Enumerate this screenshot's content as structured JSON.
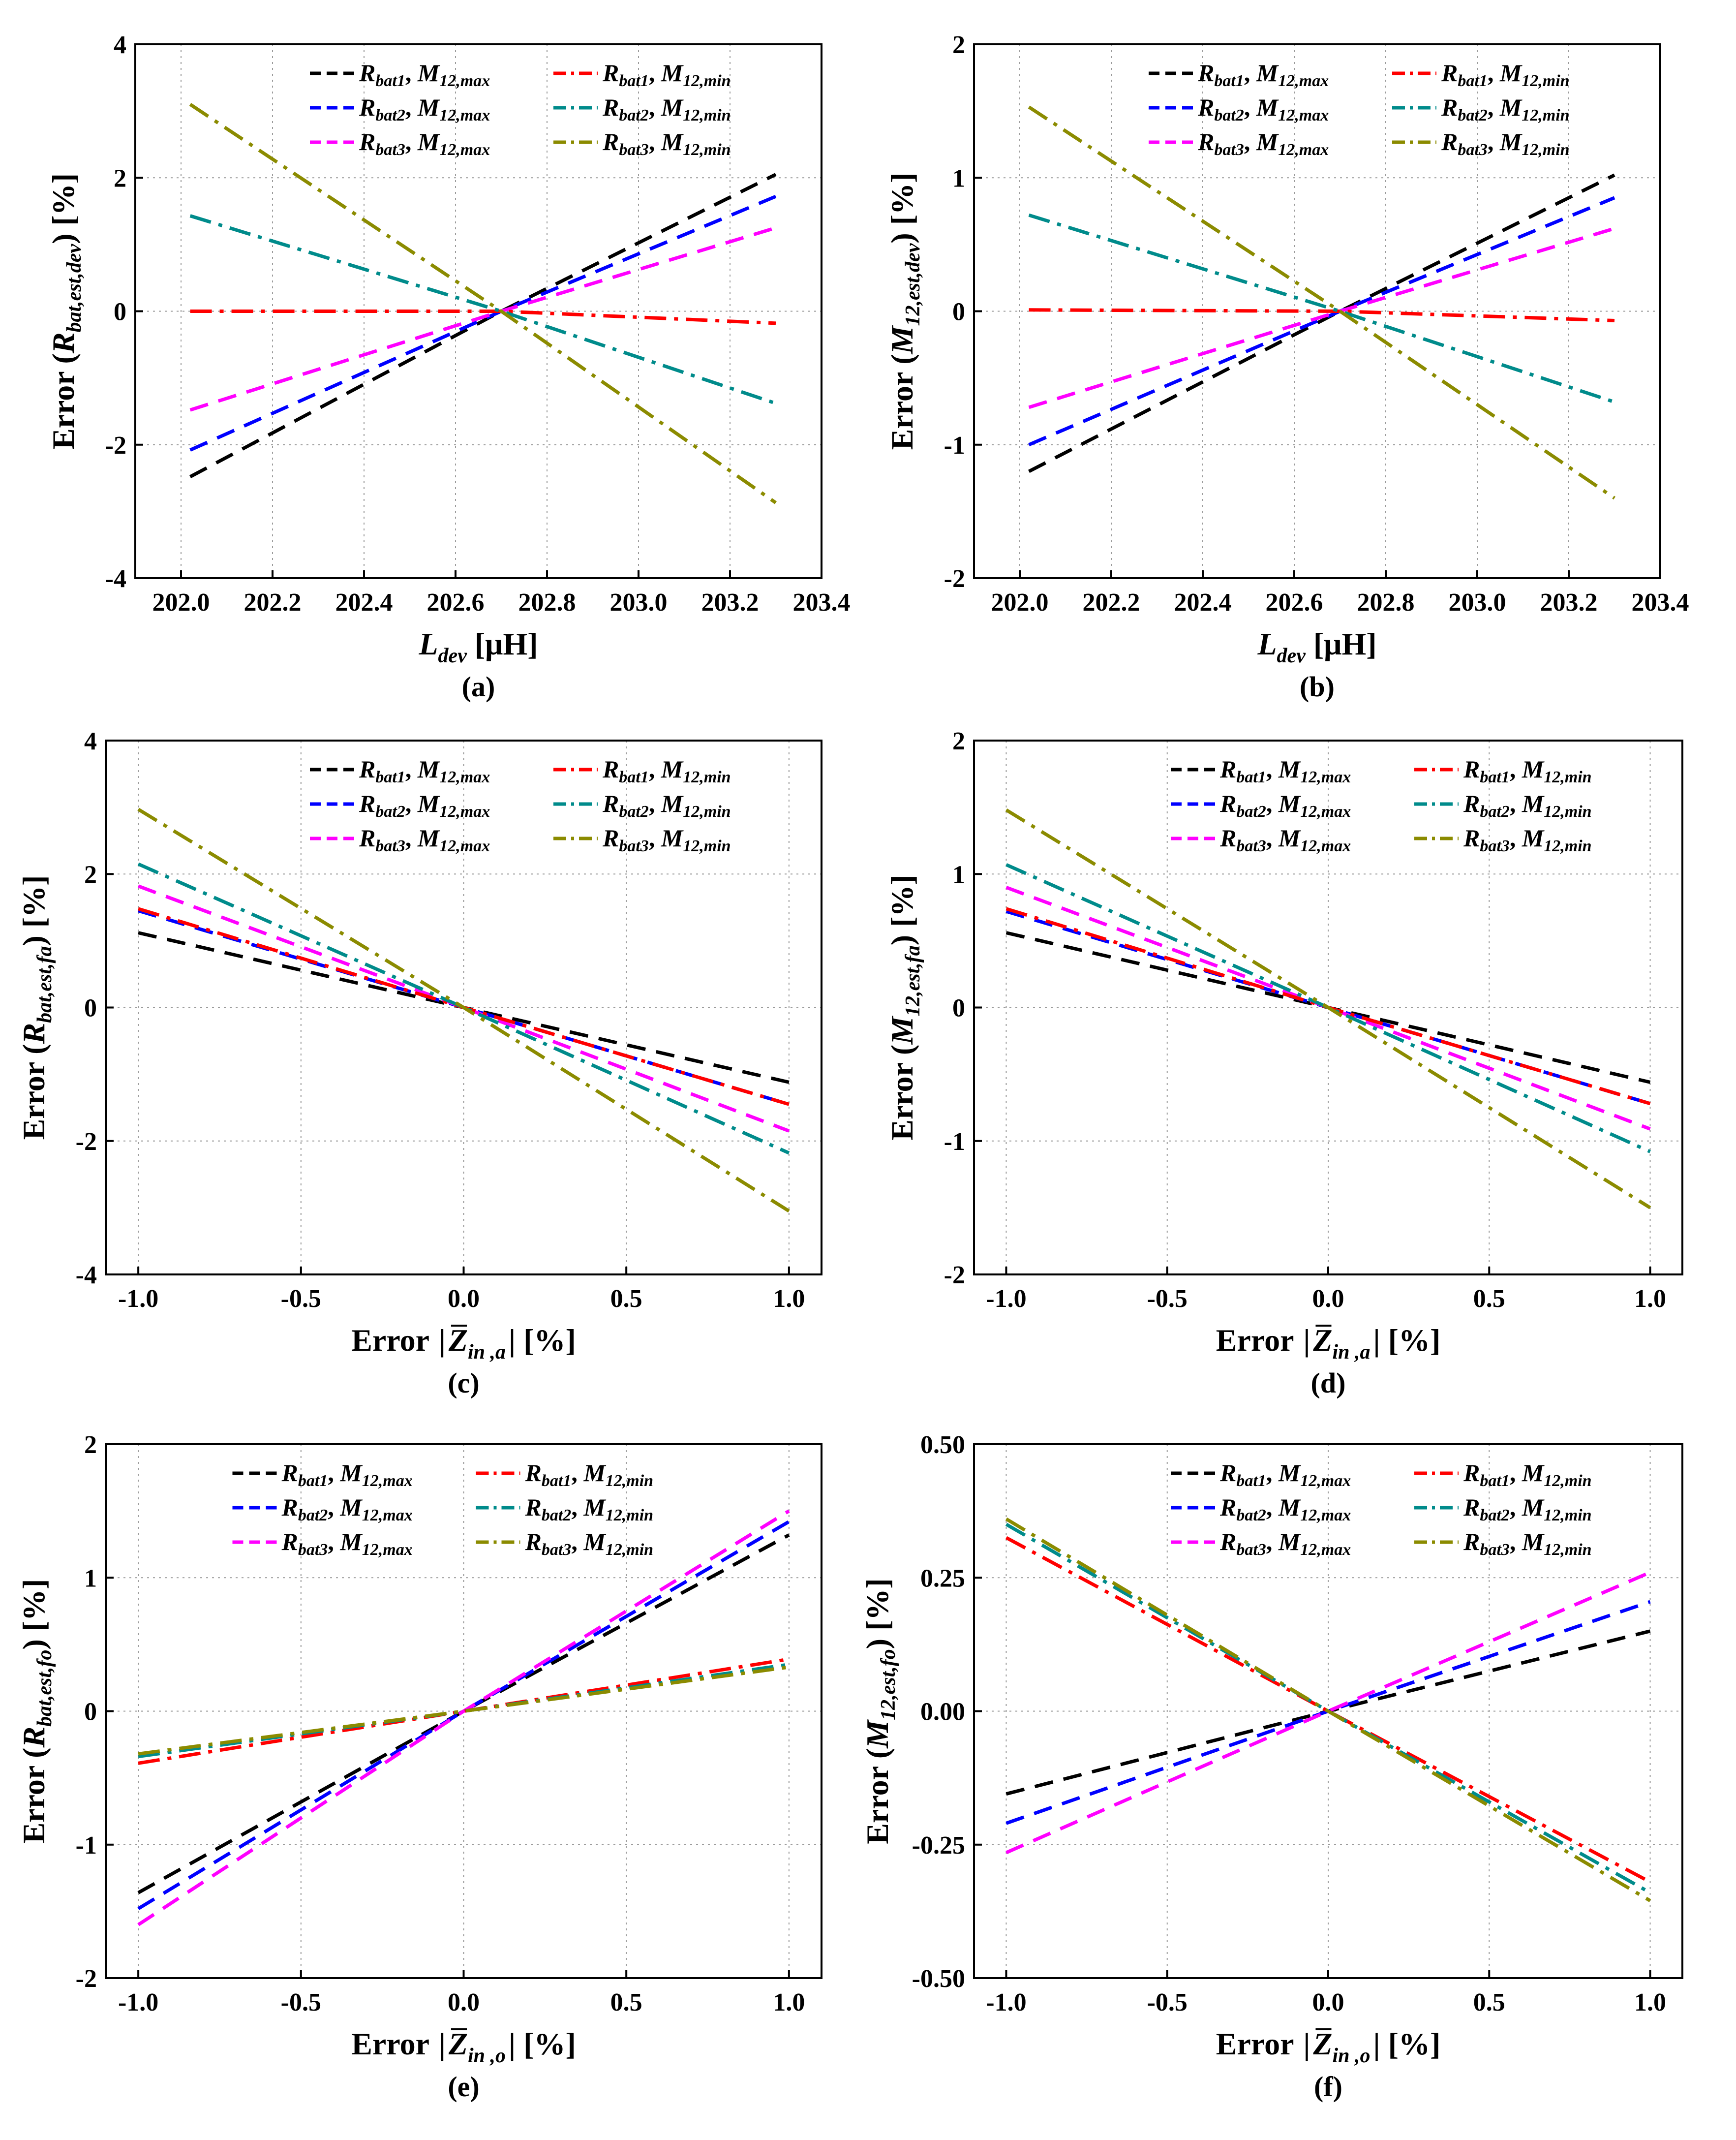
{
  "colors": {
    "R1max": "#000000",
    "R2max": "#0000ff",
    "R3max": "#ff00ff",
    "R1min": "#ff0000",
    "R2min": "#008b8b",
    "R3min": "#8b8b00"
  },
  "legend_keys": [
    "R1max",
    "R1min",
    "R2max",
    "R2min",
    "R3max",
    "R3min"
  ],
  "legend": {
    "R1max": {
      "base": "R",
      "base_sub": "bat1",
      "sep": ", ",
      "m": "M",
      "m_sub": "12,max"
    },
    "R1min": {
      "base": "R",
      "base_sub": "bat1",
      "sep": ", ",
      "m": "M",
      "m_sub": "12,min"
    },
    "R2max": {
      "base": "R",
      "base_sub": "bat2",
      "sep": ", ",
      "m": "M",
      "m_sub": "12,max"
    },
    "R2min": {
      "base": "R",
      "base_sub": "bat2",
      "sep": ", ",
      "m": "M",
      "m_sub": "12,min"
    },
    "R3max": {
      "base": "R",
      "base_sub": "bat3",
      "sep": ", ",
      "m": "M",
      "m_sub": "12,max"
    },
    "R3min": {
      "base": "R",
      "base_sub": "bat3",
      "sep": ", ",
      "m": "M",
      "m_sub": "12,min"
    }
  },
  "chart_data": [
    {
      "id": "a",
      "type": "line",
      "panel_label": "(a)",
      "xlim": [
        201.9,
        203.4
      ],
      "ylim": [
        -4,
        4
      ],
      "xticks": [
        202.0,
        202.2,
        202.4,
        202.6,
        202.8,
        203.0,
        203.2,
        203.4
      ],
      "xtick_labels": [
        "202.0",
        "202.2",
        "202.4",
        "202.6",
        "202.8",
        "203.0",
        "203.2",
        "203.4"
      ],
      "yticks": [
        -4,
        -2,
        0,
        2,
        4
      ],
      "ytick_labels": [
        "-4",
        "-2",
        "0",
        "2",
        "4"
      ],
      "xlabel": {
        "main": "L",
        "sub": "dev",
        "rest": " [μH]"
      },
      "ylabel": {
        "pre": "Error (",
        "main": "R",
        "sub": "bat,est,dev",
        "post": ") [%]"
      },
      "legend_position": "top-right",
      "series": [
        {
          "key": "R1max",
          "x": [
            202.02,
            202.7,
            203.3
          ],
          "y": [
            -2.48,
            0.0,
            2.05
          ]
        },
        {
          "key": "R2max",
          "x": [
            202.02,
            202.7,
            203.3
          ],
          "y": [
            -2.08,
            0.0,
            1.72
          ]
        },
        {
          "key": "R3max",
          "x": [
            202.02,
            202.7,
            203.3
          ],
          "y": [
            -1.48,
            0.0,
            1.25
          ]
        },
        {
          "key": "R1min",
          "x": [
            202.02,
            202.7,
            203.3
          ],
          "y": [
            0.0,
            0.0,
            -0.18
          ]
        },
        {
          "key": "R2min",
          "x": [
            202.02,
            202.7,
            203.3
          ],
          "y": [
            1.43,
            0.0,
            -1.38
          ]
        },
        {
          "key": "R3min",
          "x": [
            202.02,
            202.7,
            203.3
          ],
          "y": [
            3.1,
            0.0,
            -2.87
          ]
        }
      ]
    },
    {
      "id": "b",
      "type": "line",
      "panel_label": "(b)",
      "xlim": [
        201.9,
        203.4
      ],
      "ylim": [
        -2,
        2
      ],
      "xticks": [
        202.0,
        202.2,
        202.4,
        202.6,
        202.8,
        203.0,
        203.2,
        203.4
      ],
      "xtick_labels": [
        "202.0",
        "202.2",
        "202.4",
        "202.6",
        "202.8",
        "203.0",
        "203.2",
        "203.4"
      ],
      "yticks": [
        -2,
        -1,
        0,
        1,
        2
      ],
      "ytick_labels": [
        "-2",
        "-1",
        "0",
        "1",
        "2"
      ],
      "xlabel": {
        "main": "L",
        "sub": "dev",
        "rest": " [μH]"
      },
      "ylabel": {
        "pre": "Error (",
        "main": "M",
        "sub": "12,est,dev",
        "post": ") [%]"
      },
      "legend_position": "top-right",
      "series": [
        {
          "key": "R1max",
          "x": [
            202.02,
            202.7,
            203.3
          ],
          "y": [
            -1.2,
            0.0,
            1.02
          ]
        },
        {
          "key": "R2max",
          "x": [
            202.02,
            202.7,
            203.3
          ],
          "y": [
            -1.0,
            0.0,
            0.85
          ]
        },
        {
          "key": "R3max",
          "x": [
            202.02,
            202.7,
            203.3
          ],
          "y": [
            -0.72,
            0.0,
            0.62
          ]
        },
        {
          "key": "R1min",
          "x": [
            202.02,
            202.7,
            203.3
          ],
          "y": [
            0.01,
            0.0,
            -0.07
          ]
        },
        {
          "key": "R2min",
          "x": [
            202.02,
            202.7,
            203.3
          ],
          "y": [
            0.72,
            0.0,
            -0.68
          ]
        },
        {
          "key": "R3min",
          "x": [
            202.02,
            202.7,
            203.3
          ],
          "y": [
            1.53,
            0.0,
            -1.4
          ]
        }
      ]
    },
    {
      "id": "c",
      "type": "line",
      "panel_label": "(c)",
      "xlim": [
        -1.1,
        1.1
      ],
      "ylim": [
        -4,
        4
      ],
      "xticks": [
        -1.0,
        -0.5,
        0.0,
        0.5,
        1.0
      ],
      "xtick_labels": [
        "-1.0",
        "-0.5",
        "0.0",
        "0.5",
        "1.0"
      ],
      "yticks": [
        -4,
        -2,
        0,
        2,
        4
      ],
      "ytick_labels": [
        "-4",
        "-2",
        "0",
        "2",
        "4"
      ],
      "xlabel": {
        "pre": "Error ",
        "z": "Z",
        "sub": "in ,a",
        "rest": " [%]"
      },
      "ylabel": {
        "pre": "Error (",
        "main": "R",
        "sub": "bat,est,fa",
        "post": ") [%]"
      },
      "legend_position": "top-right",
      "series": [
        {
          "key": "R1max",
          "x": [
            -1.0,
            0.0,
            1.0
          ],
          "y": [
            1.12,
            0.0,
            -1.12
          ]
        },
        {
          "key": "R2max",
          "x": [
            -1.0,
            0.0,
            1.0
          ],
          "y": [
            1.45,
            0.0,
            -1.45
          ]
        },
        {
          "key": "R3max",
          "x": [
            -1.0,
            0.0,
            1.0
          ],
          "y": [
            1.82,
            0.0,
            -1.85
          ]
        },
        {
          "key": "R1min",
          "x": [
            -1.0,
            0.0,
            1.0
          ],
          "y": [
            1.48,
            0.0,
            -1.45
          ]
        },
        {
          "key": "R2min",
          "x": [
            -1.0,
            0.0,
            1.0
          ],
          "y": [
            2.15,
            0.0,
            -2.18
          ]
        },
        {
          "key": "R3min",
          "x": [
            -1.0,
            0.0,
            1.0
          ],
          "y": [
            2.97,
            0.0,
            -3.05
          ]
        }
      ]
    },
    {
      "id": "d",
      "type": "line",
      "panel_label": "(d)",
      "xlim": [
        -1.1,
        1.1
      ],
      "ylim": [
        -2,
        2
      ],
      "xticks": [
        -1.0,
        -0.5,
        0.0,
        0.5,
        1.0
      ],
      "xtick_labels": [
        "-1.0",
        "-0.5",
        "0.0",
        "0.5",
        "1.0"
      ],
      "yticks": [
        -2,
        -1,
        0,
        1,
        2
      ],
      "ytick_labels": [
        "-2",
        "-1",
        "0",
        "1",
        "2"
      ],
      "xlabel": {
        "pre": "Error ",
        "z": "Z",
        "sub": "in ,a",
        "rest": " [%]"
      },
      "ylabel": {
        "pre": "Error (",
        "main": "M",
        "sub": "12,est,fa",
        "post": ") [%]"
      },
      "legend_position": "top-right",
      "series": [
        {
          "key": "R1max",
          "x": [
            -1.0,
            0.0,
            1.0
          ],
          "y": [
            0.56,
            0.0,
            -0.56
          ]
        },
        {
          "key": "R2max",
          "x": [
            -1.0,
            0.0,
            1.0
          ],
          "y": [
            0.72,
            0.0,
            -0.72
          ]
        },
        {
          "key": "R3max",
          "x": [
            -1.0,
            0.0,
            1.0
          ],
          "y": [
            0.9,
            0.0,
            -0.91
          ]
        },
        {
          "key": "R1min",
          "x": [
            -1.0,
            0.0,
            1.0
          ],
          "y": [
            0.74,
            0.0,
            -0.72
          ]
        },
        {
          "key": "R2min",
          "x": [
            -1.0,
            0.0,
            1.0
          ],
          "y": [
            1.07,
            0.0,
            -1.08
          ]
        },
        {
          "key": "R3min",
          "x": [
            -1.0,
            0.0,
            1.0
          ],
          "y": [
            1.48,
            0.0,
            -1.5
          ]
        }
      ]
    },
    {
      "id": "e",
      "type": "line",
      "panel_label": "(e)",
      "xlim": [
        -1.1,
        1.1
      ],
      "ylim": [
        -2,
        2
      ],
      "xticks": [
        -1.0,
        -0.5,
        0.0,
        0.5,
        1.0
      ],
      "xtick_labels": [
        "-1.0",
        "-0.5",
        "0.0",
        "0.5",
        "1.0"
      ],
      "yticks": [
        -2,
        -1,
        0,
        1,
        2
      ],
      "ytick_labels": [
        "-2",
        "-1",
        "0",
        "1",
        "2"
      ],
      "xlabel": {
        "pre": "Error ",
        "z": "Z",
        "sub": "in ,o",
        "rest": " [%]"
      },
      "ylabel": {
        "pre": "Error (",
        "main": "R",
        "sub": "bat,est,fo",
        "post": ") [%]"
      },
      "legend_position": "top-center",
      "series": [
        {
          "key": "R1max",
          "x": [
            -1.0,
            0.0,
            1.0
          ],
          "y": [
            -1.36,
            0.0,
            1.32
          ]
        },
        {
          "key": "R2max",
          "x": [
            -1.0,
            0.0,
            1.0
          ],
          "y": [
            -1.48,
            0.0,
            1.42
          ]
        },
        {
          "key": "R3max",
          "x": [
            -1.0,
            0.0,
            1.0
          ],
          "y": [
            -1.6,
            0.0,
            1.5
          ]
        },
        {
          "key": "R1min",
          "x": [
            -1.0,
            0.0,
            1.0
          ],
          "y": [
            -0.39,
            0.0,
            0.39
          ]
        },
        {
          "key": "R2min",
          "x": [
            -1.0,
            0.0,
            1.0
          ],
          "y": [
            -0.34,
            0.0,
            0.35
          ]
        },
        {
          "key": "R3min",
          "x": [
            -1.0,
            0.0,
            1.0
          ],
          "y": [
            -0.32,
            0.0,
            0.33
          ]
        }
      ]
    },
    {
      "id": "f",
      "type": "line",
      "panel_label": "(f)",
      "xlim": [
        -1.1,
        1.1
      ],
      "ylim": [
        -0.5,
        0.5
      ],
      "xticks": [
        -1.0,
        -0.5,
        0.0,
        0.5,
        1.0
      ],
      "xtick_labels": [
        "-1.0",
        "-0.5",
        "0.0",
        "0.5",
        "1.0"
      ],
      "yticks": [
        -0.5,
        -0.25,
        0.0,
        0.25,
        0.5
      ],
      "ytick_labels": [
        "-0.50",
        "-0.25",
        "0.00",
        "0.25",
        "0.50"
      ],
      "xlabel": {
        "pre": "Error ",
        "z": "Z",
        "sub": "in ,o",
        "rest": " [%]"
      },
      "ylabel": {
        "pre": "Error (",
        "main": "M",
        "sub": "12,est,fo",
        "post": ") [%]"
      },
      "legend_position": "top-right",
      "series": [
        {
          "key": "R1max",
          "x": [
            -1.0,
            0.0,
            1.0
          ],
          "y": [
            -0.155,
            0.0,
            0.15
          ]
        },
        {
          "key": "R2max",
          "x": [
            -1.0,
            0.0,
            1.0
          ],
          "y": [
            -0.21,
            0.0,
            0.205
          ]
        },
        {
          "key": "R3max",
          "x": [
            -1.0,
            0.0,
            1.0
          ],
          "y": [
            -0.265,
            0.0,
            0.26
          ]
        },
        {
          "key": "R1min",
          "x": [
            -1.0,
            0.0,
            1.0
          ],
          "y": [
            0.325,
            0.0,
            -0.32
          ]
        },
        {
          "key": "R2min",
          "x": [
            -1.0,
            0.0,
            1.0
          ],
          "y": [
            0.35,
            0.0,
            -0.34
          ]
        },
        {
          "key": "R3min",
          "x": [
            -1.0,
            0.0,
            1.0
          ],
          "y": [
            0.36,
            0.0,
            -0.355
          ]
        }
      ]
    }
  ]
}
